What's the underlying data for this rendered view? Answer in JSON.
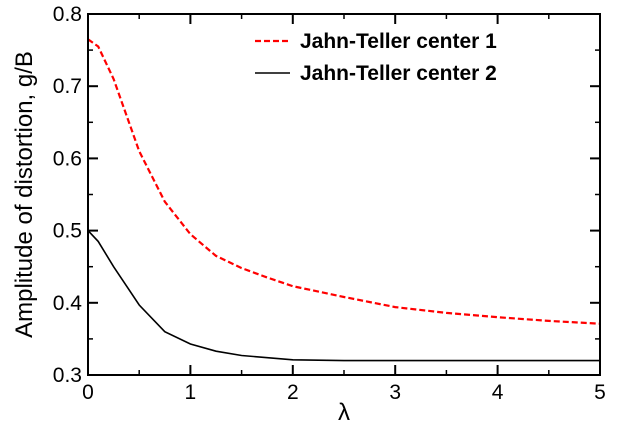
{
  "chart_data": {
    "type": "line",
    "xlabel": "λ",
    "ylabel": "Amplitude of distortion, g/B",
    "xlim": [
      0,
      5
    ],
    "ylim": [
      0.3,
      0.8
    ],
    "xticks": [
      0,
      1,
      2,
      3,
      4,
      5
    ],
    "yticks": [
      0.3,
      0.4,
      0.5,
      0.6,
      0.7,
      0.8
    ],
    "xtick_labels": [
      "0",
      "1",
      "2",
      "3",
      "4",
      "5"
    ],
    "ytick_labels": [
      "0.3",
      "0.4",
      "0.5",
      "0.6",
      "0.7",
      "0.8"
    ],
    "grid": false,
    "legend_position": "top-right",
    "series": [
      {
        "name": "Jahn-Teller center 1",
        "color": "#ff0000",
        "style": "dashed",
        "x": [
          0,
          0.1,
          0.25,
          0.5,
          0.75,
          1.0,
          1.25,
          1.5,
          1.75,
          2.0,
          2.5,
          3.0,
          3.5,
          4.0,
          4.5,
          5.0
        ],
        "y": [
          0.765,
          0.755,
          0.71,
          0.61,
          0.54,
          0.495,
          0.465,
          0.448,
          0.435,
          0.423,
          0.408,
          0.394,
          0.386,
          0.38,
          0.375,
          0.371
        ]
      },
      {
        "name": "Jahn-Teller center 2",
        "color": "#000000",
        "style": "solid",
        "x": [
          0,
          0.1,
          0.25,
          0.5,
          0.75,
          1.0,
          1.25,
          1.5,
          2.0,
          2.5,
          3.0,
          3.5,
          4.0,
          4.5,
          5.0
        ],
        "y": [
          0.5,
          0.485,
          0.45,
          0.397,
          0.36,
          0.343,
          0.333,
          0.327,
          0.321,
          0.32,
          0.32,
          0.32,
          0.32,
          0.32,
          0.32
        ]
      }
    ]
  }
}
